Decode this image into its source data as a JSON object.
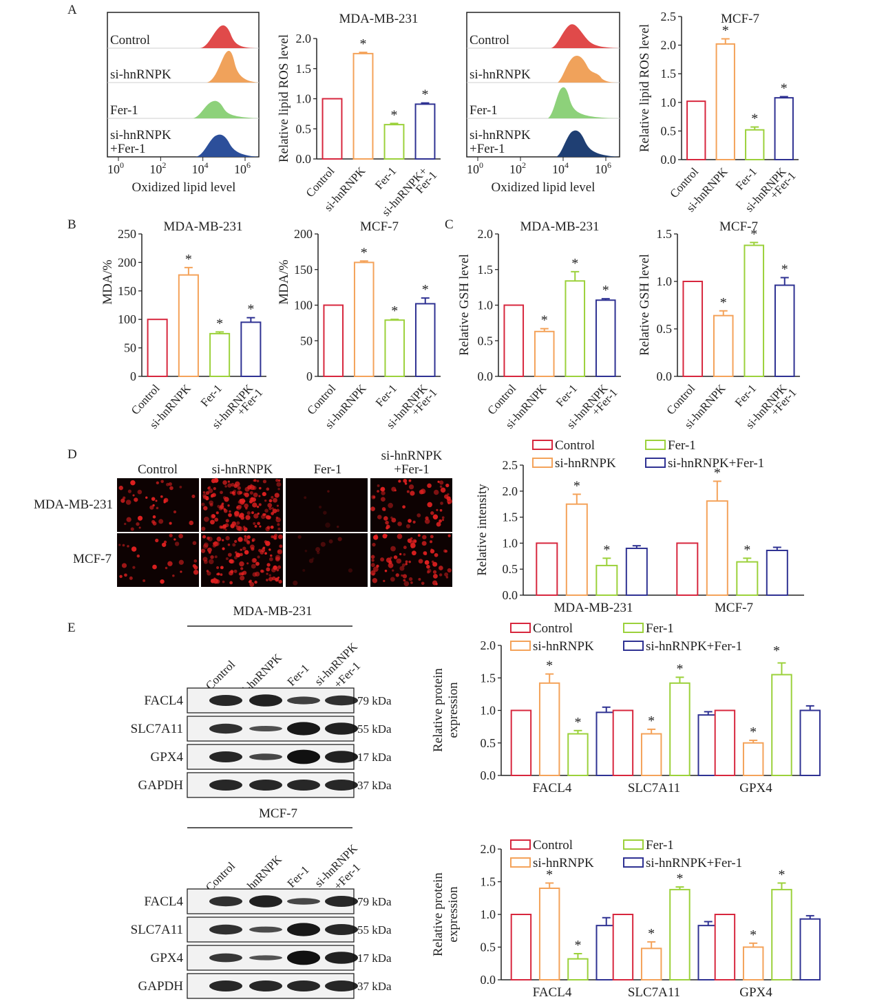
{
  "colors": {
    "control": "#d7263d",
    "sihnrnpk": "#f4a259",
    "fer1": "#9bd13a",
    "combo": "#2e3192",
    "axis": "#222222",
    "image_bg": "#0d0202",
    "cell": "#e02020"
  },
  "panels": {
    "A": "A",
    "B": "B",
    "C": "C",
    "D": "D",
    "E": "E"
  },
  "flow": {
    "xlabel": "Oxidized lipid level",
    "ticks": [
      {
        "b": "10",
        "e": "0"
      },
      {
        "b": "10",
        "e": "2"
      },
      {
        "b": "10",
        "e": "4"
      },
      {
        "b": "10",
        "e": "6"
      }
    ],
    "left_labels": [
      "Control",
      "si-hnRNPK",
      "Fer-1",
      "si-hnRNPK",
      "+Fer-1"
    ],
    "right_labels": [
      "Control",
      "si-hnRNPK",
      "Fer-1",
      "si-hnRNPK",
      "+Fer-1"
    ]
  },
  "images": {
    "cols": [
      "Control",
      "si-hnRNPK",
      "Fer-1",
      "si-hnRNPK",
      "+Fer-1"
    ],
    "rows": [
      "MDA-MB-231",
      "MCF-7"
    ]
  },
  "blots": {
    "top_title": "MDA-MB-231",
    "bottom_title": "MCF-7",
    "lanes": [
      "Control",
      "si-hnRNPK",
      "Fer-1",
      "si-hnRNPK",
      "+Fer-1"
    ],
    "proteins": [
      "FACL4",
      "SLC7A11",
      "GPX4",
      "GAPDH"
    ],
    "sizes": [
      "79 kDa",
      "55 kDa",
      "17 kDa",
      "37 kDa"
    ]
  },
  "chart_data": [
    {
      "id": "A1",
      "type": "bar",
      "title": "MDA-MB-231",
      "ylabel": "Relative lipid ROS level",
      "ylim": [
        0,
        2.0
      ],
      "yticks": [
        "0.0",
        "0.5",
        "1.0",
        "1.5",
        "2.0"
      ],
      "categories": [
        "Control",
        "si-hnRNPK",
        "Fer-1",
        "si-hnRNPK+ Fer-1"
      ],
      "values": [
        1.0,
        1.75,
        0.57,
        0.91
      ],
      "errors": [
        0,
        0.02,
        0.02,
        0.02
      ],
      "stars": [
        false,
        true,
        true,
        true
      ]
    },
    {
      "id": "A2",
      "type": "bar",
      "title": "MCF-7",
      "ylabel": "Relative lipid ROS level",
      "ylim": [
        0,
        2.5
      ],
      "yticks": [
        "0.0",
        "0.5",
        "1.0",
        "1.5",
        "2.0",
        "2.5"
      ],
      "categories": [
        "Control",
        "si-hnRNPK",
        "Fer-1",
        "si-hnRNPK +Fer-1"
      ],
      "values": [
        1.02,
        2.02,
        0.52,
        1.08
      ],
      "errors": [
        0,
        0.09,
        0.05,
        0.02
      ],
      "stars": [
        false,
        true,
        true,
        true
      ]
    },
    {
      "id": "B1",
      "type": "bar",
      "title": "MDA-MB-231",
      "ylabel": "MDA/%",
      "ylim": [
        0,
        250
      ],
      "yticks": [
        "0",
        "50",
        "100",
        "150",
        "200",
        "250"
      ],
      "categories": [
        "Control",
        "si-hnRNPK",
        "Fer-1",
        "si-hnRNPK +Fer-1"
      ],
      "values": [
        100,
        178,
        75,
        95
      ],
      "errors": [
        0,
        13,
        3,
        8
      ],
      "stars": [
        false,
        true,
        true,
        true
      ]
    },
    {
      "id": "B2",
      "type": "bar",
      "title": "MCF-7",
      "ylabel": "MDA/%",
      "ylim": [
        0,
        200
      ],
      "yticks": [
        "0",
        "50",
        "100",
        "150",
        "200"
      ],
      "categories": [
        "Control",
        "si-hnRNPK",
        "Fer-1",
        "si-hnRNPK +Fer-1"
      ],
      "values": [
        100,
        160,
        79,
        102
      ],
      "errors": [
        0,
        2,
        1,
        8
      ],
      "stars": [
        false,
        true,
        true,
        true
      ]
    },
    {
      "id": "C1",
      "type": "bar",
      "title": "MDA-MB-231",
      "ylabel": "Relative GSH level",
      "ylim": [
        0,
        2.0
      ],
      "yticks": [
        "0.0",
        "0.5",
        "1.0",
        "1.5",
        "2.0"
      ],
      "categories": [
        "Control",
        "si-hnRNPK",
        "Fer-1",
        "si-hnRNPK +Fer-1"
      ],
      "values": [
        1.0,
        0.63,
        1.34,
        1.07
      ],
      "errors": [
        0,
        0.04,
        0.13,
        0.02
      ],
      "stars": [
        false,
        true,
        true,
        true
      ]
    },
    {
      "id": "C2",
      "type": "bar",
      "title": "MCF-7",
      "ylabel": "Relative GSH level",
      "ylim": [
        0,
        1.5
      ],
      "yticks": [
        "0.0",
        "0.5",
        "1.0",
        "1.5"
      ],
      "categories": [
        "Control",
        "si-hnRNPK",
        "Fer-1",
        "si-hnRNPK +Fer-1"
      ],
      "values": [
        1.0,
        0.64,
        1.38,
        0.96
      ],
      "errors": [
        0,
        0.05,
        0.03,
        0.08
      ],
      "stars": [
        false,
        true,
        true,
        true
      ]
    },
    {
      "id": "D",
      "type": "bar",
      "ylabel": "Relative intensity",
      "ylim": [
        0,
        2.5
      ],
      "yticks": [
        "0.0",
        "0.5",
        "1.0",
        "1.5",
        "2.0",
        "2.5"
      ],
      "categories": [
        "MDA-MB-231",
        "MCF-7"
      ],
      "legend": [
        "Control",
        "Fer-1",
        "si-hnRNPK",
        "si-hnRNPK+Fer-1"
      ],
      "series": [
        {
          "name": "Control",
          "values": [
            1.0,
            1.0
          ],
          "errors": [
            0,
            0
          ],
          "stars": [
            false,
            false
          ]
        },
        {
          "name": "si-hnRNPK",
          "values": [
            1.75,
            1.81
          ],
          "errors": [
            0.19,
            0.38
          ],
          "stars": [
            true,
            true
          ]
        },
        {
          "name": "Fer-1",
          "values": [
            0.57,
            0.64
          ],
          "errors": [
            0.14,
            0.07
          ],
          "stars": [
            true,
            true
          ]
        },
        {
          "name": "si-hnRNPK+Fer-1",
          "values": [
            0.9,
            0.86
          ],
          "errors": [
            0.05,
            0.06
          ],
          "stars": [
            false,
            false
          ]
        }
      ]
    },
    {
      "id": "E1",
      "type": "bar",
      "ylabel": "Relative protein expression",
      "ylim": [
        0,
        2.0
      ],
      "yticks": [
        "0.0",
        "0.5",
        "1.0",
        "1.5",
        "2.0"
      ],
      "categories": [
        "FACL4",
        "SLC7A11",
        "GPX4"
      ],
      "legend": [
        "Control",
        "Fer-1",
        "si-hnRNPK",
        "si-hnRNPK+Fer-1"
      ],
      "legend_star": "*",
      "series": [
        {
          "name": "Control",
          "values": [
            1.0,
            1.0,
            1.0
          ],
          "errors": [
            0,
            0,
            0
          ],
          "stars": [
            false,
            false,
            false
          ]
        },
        {
          "name": "si-hnRNPK",
          "values": [
            1.42,
            0.64,
            0.5
          ],
          "errors": [
            0.14,
            0.07,
            0.04
          ],
          "stars": [
            true,
            true,
            true
          ]
        },
        {
          "name": "Fer-1",
          "values": [
            0.64,
            1.42,
            1.55
          ],
          "errors": [
            0.05,
            0.09,
            0.18
          ],
          "stars": [
            true,
            true,
            false
          ]
        },
        {
          "name": "si-hnRNPK+Fer-1",
          "values": [
            0.97,
            0.93,
            1.0
          ],
          "errors": [
            0.08,
            0.05,
            0.07
          ],
          "stars": [
            false,
            false,
            false
          ]
        }
      ]
    },
    {
      "id": "E2",
      "type": "bar",
      "ylabel": "Relative protein expression",
      "ylim": [
        0,
        2.0
      ],
      "yticks": [
        "0.0",
        "0.5",
        "1.0",
        "1.5",
        "2.0"
      ],
      "categories": [
        "FACL4",
        "SLC7A11",
        "GPX4"
      ],
      "legend": [
        "Control",
        "Fer-1",
        "si-hnRNPK",
        "si-hnRNPK+Fer-1"
      ],
      "series": [
        {
          "name": "Control",
          "values": [
            1.0,
            1.0,
            1.0
          ],
          "errors": [
            0,
            0,
            0
          ],
          "stars": [
            false,
            false,
            false
          ]
        },
        {
          "name": "si-hnRNPK",
          "values": [
            1.4,
            0.48,
            0.5
          ],
          "errors": [
            0.08,
            0.1,
            0.06
          ],
          "stars": [
            true,
            true,
            true
          ]
        },
        {
          "name": "Fer-1",
          "values": [
            0.32,
            1.38,
            1.38
          ],
          "errors": [
            0.08,
            0.04,
            0.1
          ],
          "stars": [
            true,
            true,
            true
          ]
        },
        {
          "name": "si-hnRNPK+Fer-1",
          "values": [
            0.83,
            0.83,
            0.93
          ],
          "errors": [
            0.12,
            0.06,
            0.05
          ],
          "stars": [
            false,
            false,
            false
          ]
        }
      ]
    }
  ]
}
